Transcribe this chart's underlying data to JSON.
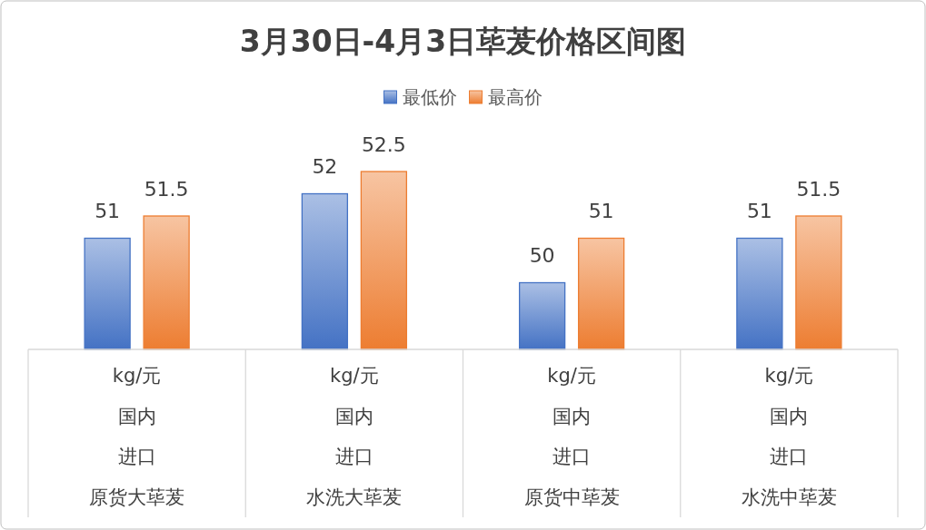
{
  "chart_data": {
    "type": "bar",
    "title": "3月30日-4月3日荜茇价格区间图",
    "categories": [
      "原货大荜茇",
      "水洗大荜茇",
      "原货中荜茇",
      "水洗中荜茇"
    ],
    "annotations": [
      "kg/元",
      "国内",
      "进口"
    ],
    "series": [
      {
        "name": "最低价",
        "color": "#4472c4",
        "values": [
          51,
          52,
          50,
          51
        ]
      },
      {
        "name": "最高价",
        "color": "#ed7d31",
        "values": [
          51.5,
          52.5,
          51,
          51.5
        ]
      }
    ],
    "ylim": [
      48.5,
      52.5
    ],
    "tick_labels": "x",
    "data_labels": true,
    "legend": "top"
  }
}
